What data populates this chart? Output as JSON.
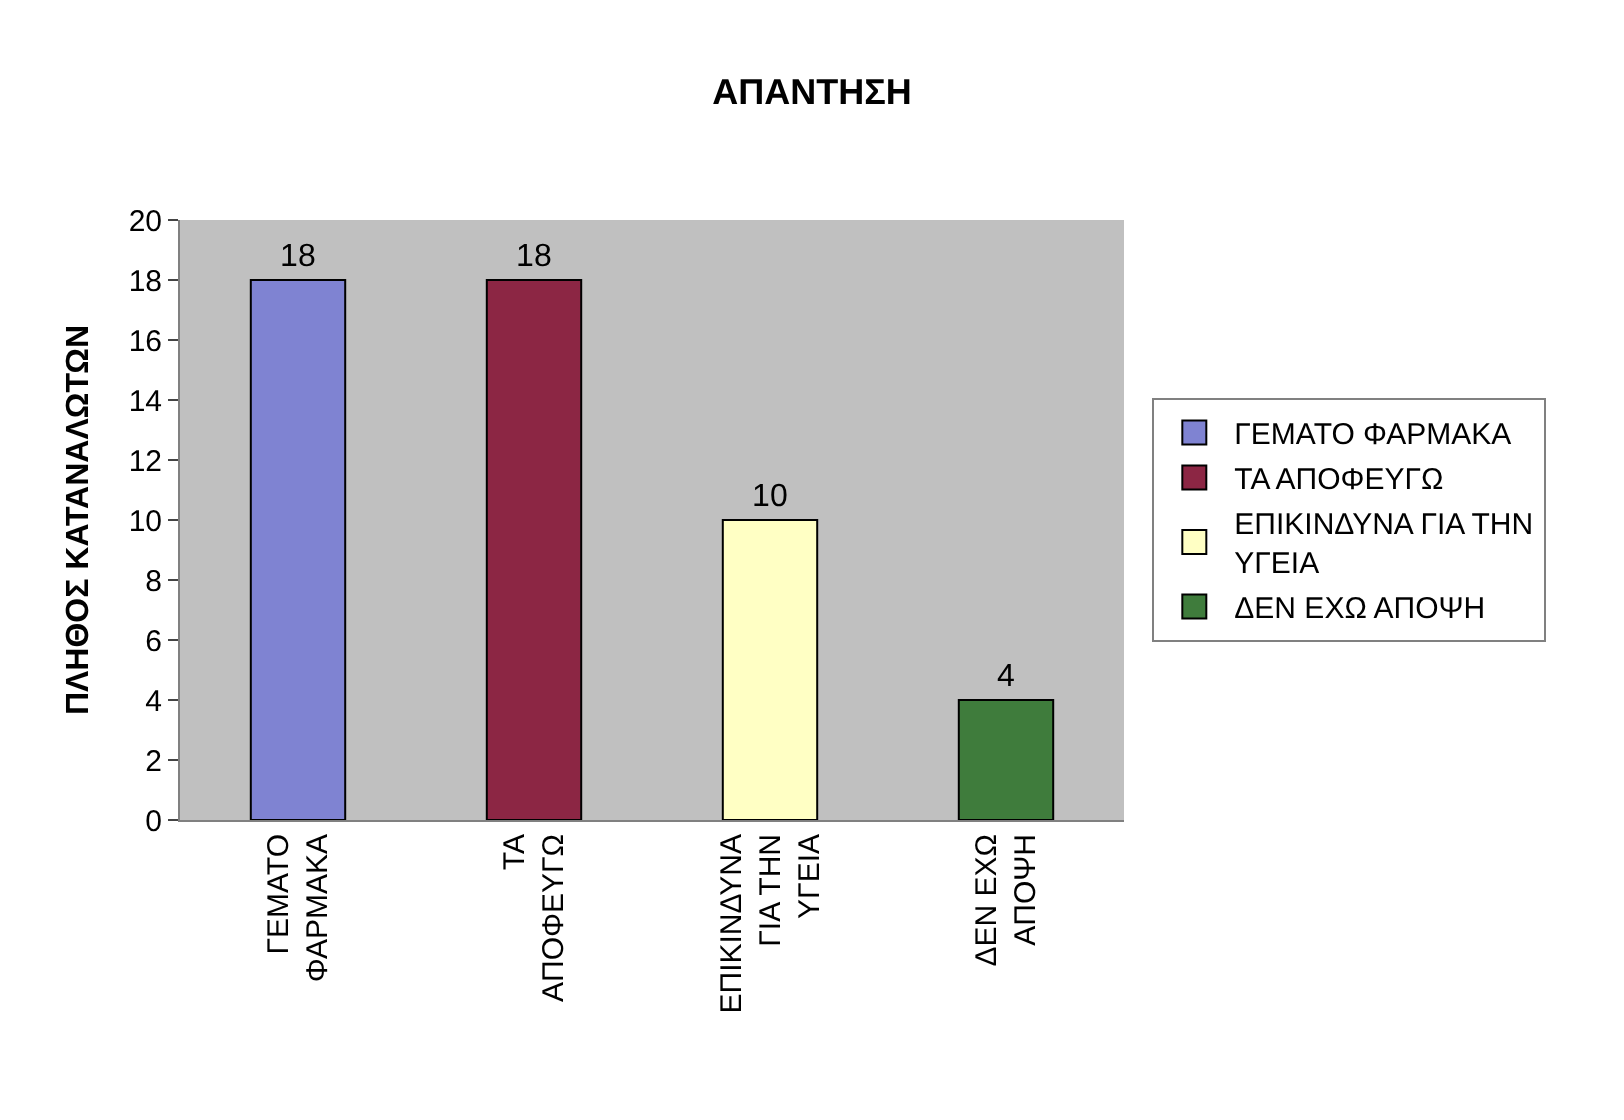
{
  "chart_data": {
    "type": "bar",
    "title": "ΑΠΑΝΤΗΣΗ",
    "ylabel": "ΠΛΗΘΟΣ ΚΑΤΑΝΑΛΩΤΩΝ",
    "categories": [
      "ΓΕΜΑΤΟ ΦΑΡΜΑΚΑ",
      "ΤΑ ΑΠΟΦΕΥΓΩ",
      "ΕΠΙΚΙΝΔΥΝΑ ΓΙΑ ΤΗΝ ΥΓΕΙΑ",
      "ΔΕΝ ΕΧΩ ΑΠΟΨΗ"
    ],
    "series": [
      {
        "name": "ΓΕΜΑΤΟ ΦΑΡΜΑΚΑ",
        "color": "#7f83d2",
        "values": [
          18,
          null,
          null,
          null
        ]
      },
      {
        "name": "ΤΑ ΑΠΟΦΕΥΓΩ",
        "color": "#8c2644",
        "values": [
          null,
          18,
          null,
          null
        ]
      },
      {
        "name": "ΕΠΙΚΙΝΔΥΝΑ ΓΙΑ ΤΗΝ ΥΓΕΙΑ",
        "color": "#ffffc4",
        "values": [
          null,
          null,
          10,
          null
        ]
      },
      {
        "name": "ΔΕΝ ΕΧΩ ΑΠΟΨΗ",
        "color": "#3f7c3c",
        "values": [
          null,
          null,
          null,
          4
        ]
      }
    ],
    "ylim": [
      0,
      20
    ],
    "yticks": [
      0,
      2,
      4,
      6,
      8,
      10,
      12,
      14,
      16,
      18,
      20
    ],
    "data_labels": true,
    "grid": false,
    "legend": "right"
  }
}
